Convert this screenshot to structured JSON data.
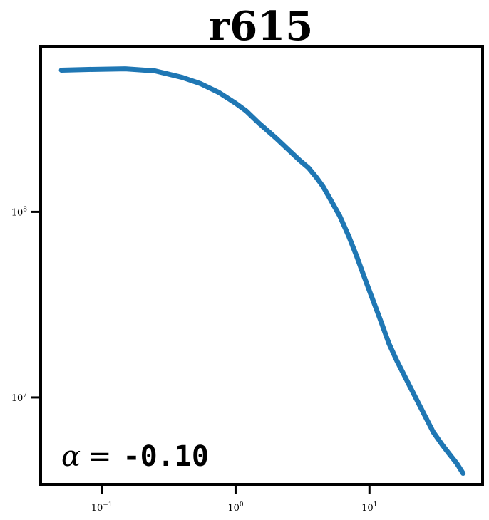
{
  "chart_data": {
    "type": "line",
    "title": "r615",
    "xlabel": "",
    "ylabel": "",
    "x_scale": "log",
    "y_scale": "log",
    "xlim": [
      0.035,
      70
    ],
    "ylim": [
      3400000,
      780000000
    ],
    "grid": false,
    "legend": "none",
    "x_ticks": [
      {
        "value": 0.1,
        "base": "10",
        "exp": "−1"
      },
      {
        "value": 1,
        "base": "10",
        "exp": "0"
      },
      {
        "value": 10,
        "base": "10",
        "exp": "1"
      }
    ],
    "y_ticks": [
      {
        "value": 10000000,
        "base": "10",
        "exp": "7"
      },
      {
        "value": 100000000,
        "base": "10",
        "exp": "8"
      }
    ],
    "series": [
      {
        "color": "#1f77b4",
        "x": [
          0.05,
          0.08,
          0.15,
          0.25,
          0.4,
          0.55,
          0.75,
          1.0,
          1.2,
          1.5,
          2.0,
          2.5,
          3.0,
          3.5,
          4.0,
          4.5,
          5.0,
          6.0,
          7.0,
          8.0,
          9.0,
          10.0,
          12.0,
          14.0,
          16.0,
          20.0,
          25.0,
          30.0,
          35.0,
          40.0,
          45.0,
          50.0
        ],
        "y": [
          580000000,
          585000000,
          590000000,
          575000000,
          530000000,
          490000000,
          440000000,
          385000000,
          350000000,
          300000000,
          250000000,
          215000000,
          190000000,
          173000000,
          154000000,
          137000000,
          120000000,
          95000000,
          74000000,
          58000000,
          46000000,
          37500000,
          26500000,
          19500000,
          15800000,
          11500000,
          8400000,
          6500000,
          5550000,
          4900000,
          4400000,
          3900000
        ]
      }
    ],
    "annotation": {
      "symbol": "α",
      "equals": "=",
      "value": "-0.10"
    }
  },
  "colors": {
    "line": "#1f77b4",
    "axes": "#000000",
    "background": "#ffffff"
  }
}
